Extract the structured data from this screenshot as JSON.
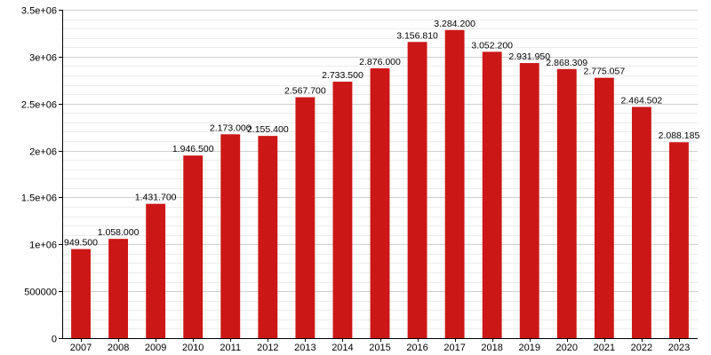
{
  "chart_data": {
    "type": "bar",
    "title": "",
    "xlabel": "",
    "ylabel": "",
    "categories": [
      "2007",
      "2008",
      "2009",
      "2010",
      "2011",
      "2012",
      "2013",
      "2014",
      "2015",
      "2016",
      "2017",
      "2018",
      "2019",
      "2020",
      "2021",
      "2022",
      "2023"
    ],
    "values": [
      949500,
      1058000,
      1431700,
      1946500,
      2173000,
      2155400,
      2567700,
      2733500,
      2876000,
      3156810,
      3284200,
      3052200,
      2931950,
      2868309,
      2775057,
      2464502,
      2088185
    ],
    "value_labels": [
      "949.500",
      "1.058.000",
      "1.431.700",
      "1.946.500",
      "2.173.000",
      "2.155.400",
      "2.567.700",
      "2.733.500",
      "2.876.000",
      "3.156.810",
      "3.284.200",
      "3.052.200",
      "2.931.950",
      "2.868.309",
      "2.775.057",
      "2.464.502",
      "2.088.185"
    ],
    "ylim": [
      0,
      3500000
    ],
    "y_ticks": [
      0,
      500000,
      1000000,
      1500000,
      2000000,
      2500000,
      3000000,
      3500000
    ],
    "y_tick_labels": [
      "0",
      "500000",
      "1e+06",
      "1.5e+06",
      "2e+06",
      "2.5e+06",
      "3e+06",
      "3.5e+06"
    ],
    "grid": true,
    "bar_color": "#cc1717"
  }
}
